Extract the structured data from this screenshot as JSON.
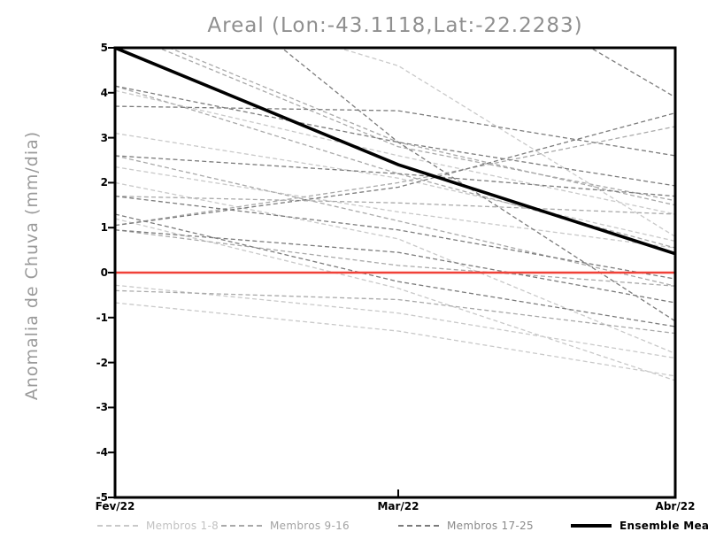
{
  "title": "Areal (Lon:-43.1118,Lat:-22.2283)",
  "chart_data": {
    "type": "line",
    "title": "Areal (Lon:-43.1118,Lat:-22.2283)",
    "xlabel": "",
    "ylabel": "Anomalia de Chuva (mm/dia)",
    "x_categories": [
      "Fev/22",
      "Mar/22",
      "Abr/22"
    ],
    "x_positions": [
      0,
      0.5055,
      1
    ],
    "ylim": [
      -5,
      5
    ],
    "y_ticks": [
      5,
      4,
      3,
      2,
      1,
      0,
      -1,
      -2,
      -3,
      -4,
      -5
    ],
    "grid": false,
    "legend_position": "bottom",
    "zero_line": {
      "value": 0,
      "color": "#f04138"
    },
    "series_groups": [
      {
        "name": "Membros 1-8",
        "color": "#c9c9c9",
        "style": "dashed",
        "members": [
          [
            6.5,
            4.6,
            0.8
          ],
          [
            4.05,
            2.6,
            1.3
          ],
          [
            3.1,
            2.1,
            0.7
          ],
          [
            2.35,
            1.35,
            0.55
          ],
          [
            2.0,
            0.75,
            -1.8
          ],
          [
            1.2,
            -0.35,
            -2.4
          ],
          [
            -0.28,
            -0.9,
            -1.9
          ],
          [
            -0.67,
            -1.3,
            -2.3
          ]
        ]
      },
      {
        "name": "Membros 9-16",
        "color": "#a9a9a9",
        "style": "dashed",
        "members": [
          [
            5.5,
            2.9,
            1.5
          ],
          [
            5.4,
            2.8,
            1.6
          ],
          [
            4.15,
            2.2,
            0.55
          ],
          [
            1.7,
            1.55,
            1.3
          ],
          [
            1.05,
            2.0,
            3.25
          ],
          [
            0.95,
            0.16,
            -0.3
          ],
          [
            -0.4,
            -0.6,
            -1.35
          ],
          [
            2.6,
            1.15,
            -0.3
          ]
        ]
      },
      {
        "name": "Membros 17-25",
        "color": "#7b7b7b",
        "style": "dashed",
        "members": [
          [
            3.7,
            3.6,
            2.6
          ],
          [
            4.15,
            2.9,
            1.93
          ],
          [
            8.0,
            2.9,
            -1.08
          ],
          [
            5.5,
            7.5,
            3.9
          ],
          [
            1.05,
            1.9,
            3.55
          ],
          [
            1.7,
            0.95,
            -0.14
          ],
          [
            0.95,
            0.45,
            -0.67
          ],
          [
            1.3,
            -0.2,
            -1.2
          ],
          [
            2.6,
            2.2,
            1.7
          ]
        ]
      }
    ],
    "ensemble_mean": {
      "name": "Ensemble Mean",
      "color": "#000000",
      "values": [
        5.0,
        2.4,
        0.42
      ]
    }
  },
  "legend": {
    "items": [
      {
        "label": "Membros 1-8",
        "color": "#c9c9c9",
        "style": "dashed"
      },
      {
        "label": "Membros 9-16",
        "color": "#a9a9a9",
        "style": "dashed"
      },
      {
        "label": "Membros 17-25",
        "color": "#7b7b7b",
        "style": "dashed"
      },
      {
        "label": "Ensemble Mean",
        "color": "#000000",
        "style": "solid"
      }
    ]
  }
}
